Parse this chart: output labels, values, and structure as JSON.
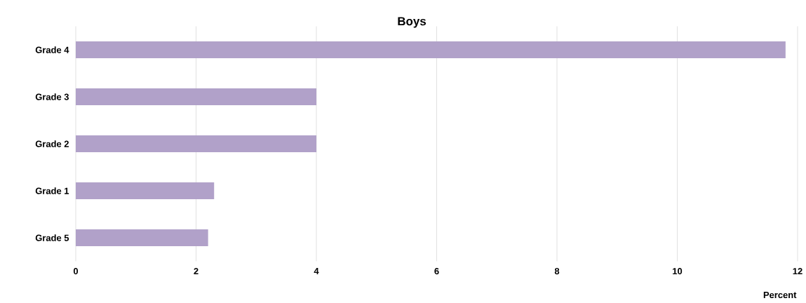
{
  "chart_data": {
    "type": "bar",
    "orientation": "horizontal",
    "title": "Boys",
    "xlabel": "Percent",
    "categories": [
      "Grade 4",
      "Grade 3",
      "Grade 2",
      "Grade 1",
      "Grade 5"
    ],
    "values": [
      11.8,
      4.0,
      4.0,
      2.3,
      2.2
    ],
    "color": "#b1a1c9",
    "xlim": [
      0,
      12
    ],
    "xticks": [
      0,
      2,
      4,
      6,
      8,
      10,
      12
    ],
    "grid": "x"
  }
}
